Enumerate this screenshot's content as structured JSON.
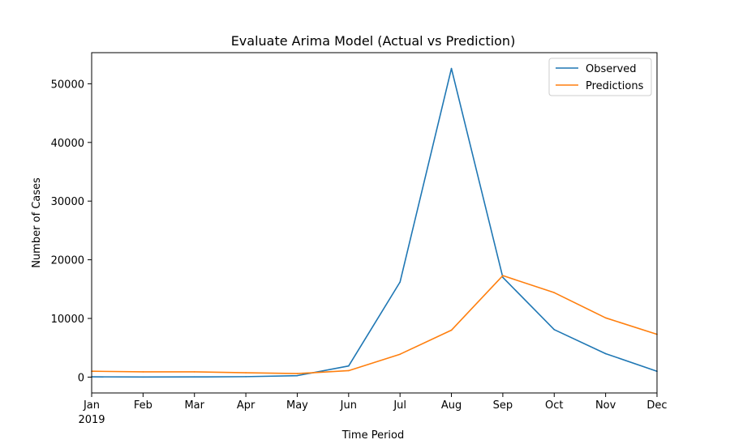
{
  "chart_data": {
    "type": "line",
    "title": "Evaluate Arima Model (Actual vs Prediction)",
    "xlabel": "Time Period",
    "ylabel": "Number of Cases",
    "categories": [
      "Jan",
      "Feb",
      "Mar",
      "Apr",
      "May",
      "Jun",
      "Jul",
      "Aug",
      "Sep",
      "Oct",
      "Nov",
      "Dec"
    ],
    "x_year_label": "2019",
    "yticks": [
      0,
      10000,
      20000,
      30000,
      40000,
      50000
    ],
    "ylim": [
      -2700,
      55300
    ],
    "grid": false,
    "legend_position": "top-right",
    "series": [
      {
        "name": "Observed",
        "color": "#1f77b4",
        "values": [
          50,
          20,
          30,
          80,
          250,
          1900,
          16200,
          52600,
          17000,
          8100,
          4000,
          1000
        ]
      },
      {
        "name": "Predictions",
        "color": "#ff7f0e",
        "values": [
          1000,
          900,
          900,
          750,
          600,
          1100,
          3900,
          8000,
          17300,
          14400,
          10100,
          7300
        ]
      }
    ]
  }
}
